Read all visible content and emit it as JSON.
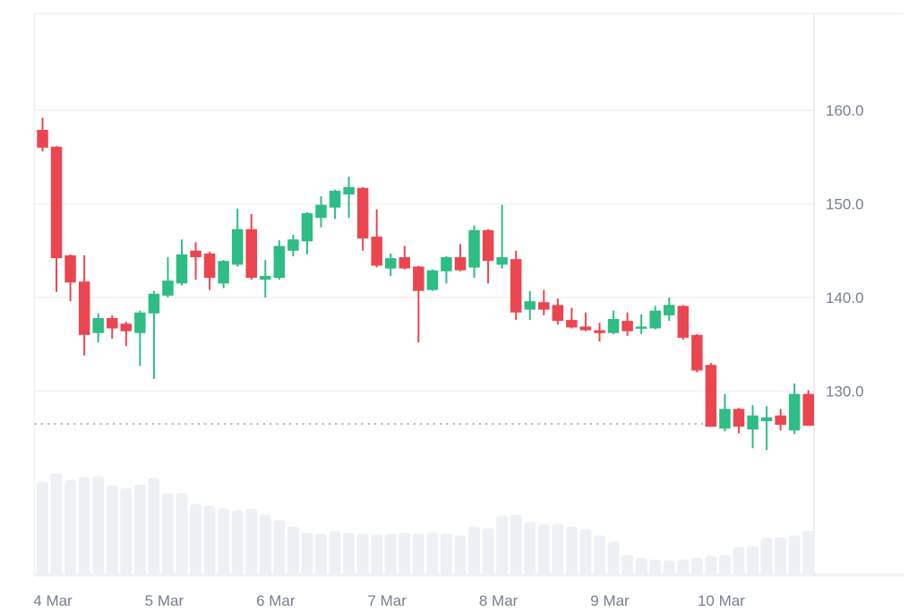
{
  "chart_data": {
    "type": "candlestick",
    "description": "Price candlestick chart with volume bars, 3-hour candles, 4 Mar to 10 Mar",
    "x_tick_labels": [
      "4 Mar",
      "5 Mar",
      "6 Mar",
      "7 Mar",
      "8 Mar",
      "9 Mar",
      "10 Mar"
    ],
    "candles_per_day": 8,
    "y_tick_labels": [
      "160.0",
      "150.0",
      "140.0",
      "130.0"
    ],
    "y_tick_values": [
      160.0,
      150.0,
      140.0,
      130.0
    ],
    "visible_price_range": [
      110.5,
      170.3
    ],
    "current_price_dotted_line": 126.5,
    "legend_position": "none",
    "grid": "horizontal-only",
    "ohlc": [
      [
        157.9,
        159.2,
        155.6,
        156.0
      ],
      [
        156.1,
        156.2,
        140.6,
        144.2
      ],
      [
        144.5,
        144.6,
        139.6,
        141.6
      ],
      [
        141.7,
        144.5,
        133.8,
        136.0
      ],
      [
        136.2,
        138.3,
        135.2,
        137.8
      ],
      [
        137.8,
        138.1,
        135.6,
        136.7
      ],
      [
        137.2,
        137.4,
        134.8,
        136.4
      ],
      [
        136.2,
        138.6,
        132.7,
        138.4
      ],
      [
        138.3,
        140.7,
        131.3,
        140.4
      ],
      [
        140.2,
        144.3,
        140.0,
        141.8
      ],
      [
        141.5,
        146.2,
        141.3,
        144.6
      ],
      [
        145.0,
        145.9,
        141.9,
        144.3
      ],
      [
        144.7,
        144.9,
        140.8,
        142.1
      ],
      [
        141.5,
        144.0,
        141.0,
        143.9
      ],
      [
        143.5,
        149.5,
        143.3,
        147.3
      ],
      [
        147.3,
        148.9,
        141.9,
        142.1
      ],
      [
        141.9,
        144.0,
        140.0,
        142.3
      ],
      [
        142.1,
        146.1,
        141.9,
        145.5
      ],
      [
        145.0,
        146.7,
        144.4,
        146.2
      ],
      [
        146.0,
        149.1,
        144.6,
        149.0
      ],
      [
        148.5,
        150.8,
        147.5,
        149.9
      ],
      [
        149.6,
        151.5,
        148.4,
        151.4
      ],
      [
        151.0,
        152.9,
        148.5,
        151.8
      ],
      [
        151.7,
        151.8,
        145.0,
        146.3
      ],
      [
        146.5,
        149.4,
        143.2,
        143.4
      ],
      [
        143.1,
        144.7,
        142.3,
        144.2
      ],
      [
        144.3,
        145.5,
        143.0,
        143.1
      ],
      [
        143.3,
        143.4,
        135.2,
        140.7
      ],
      [
        140.8,
        143.0,
        140.7,
        142.9
      ],
      [
        142.8,
        144.4,
        141.5,
        144.3
      ],
      [
        144.3,
        145.7,
        142.8,
        142.9
      ],
      [
        143.2,
        147.7,
        142.1,
        147.2
      ],
      [
        147.2,
        147.3,
        141.5,
        143.9
      ],
      [
        143.5,
        149.9,
        143.1,
        144.3
      ],
      [
        144.1,
        145.0,
        137.6,
        138.4
      ],
      [
        138.7,
        140.7,
        137.6,
        139.6
      ],
      [
        139.5,
        140.8,
        138.1,
        138.7
      ],
      [
        139.2,
        139.9,
        137.1,
        137.5
      ],
      [
        137.6,
        138.9,
        136.7,
        136.8
      ],
      [
        136.9,
        138.4,
        136.4,
        136.5
      ],
      [
        136.5,
        137.3,
        135.3,
        136.2
      ],
      [
        136.2,
        138.6,
        136.1,
        137.7
      ],
      [
        137.5,
        138.4,
        135.9,
        136.4
      ],
      [
        136.7,
        138.2,
        136.1,
        136.9
      ],
      [
        136.7,
        139.1,
        136.6,
        138.6
      ],
      [
        138.1,
        140.0,
        137.5,
        139.2
      ],
      [
        139.1,
        139.2,
        135.5,
        135.7
      ],
      [
        136.0,
        136.1,
        132.0,
        132.2
      ],
      [
        132.8,
        133.0,
        126.2,
        126.2
      ],
      [
        126.0,
        129.7,
        125.7,
        128.1
      ],
      [
        128.1,
        128.2,
        125.5,
        126.2
      ],
      [
        125.9,
        128.5,
        123.9,
        127.4
      ],
      [
        126.8,
        128.4,
        123.7,
        127.2
      ],
      [
        127.4,
        128.1,
        125.8,
        126.4
      ],
      [
        125.8,
        130.8,
        125.4,
        129.7
      ],
      [
        129.7,
        130.1,
        126.3,
        126.3
      ]
    ],
    "volume_relative": [
      103,
      112,
      105,
      108,
      109,
      99,
      96,
      100,
      107,
      90,
      90,
      78,
      76,
      73,
      71,
      73,
      66,
      60,
      53,
      46,
      45,
      48,
      46,
      45,
      44,
      45,
      46,
      45,
      46,
      45,
      43,
      53,
      51,
      65,
      66,
      58,
      55,
      56,
      53,
      50,
      43,
      36,
      21,
      18,
      16,
      15,
      16,
      18,
      20,
      21,
      30,
      31,
      40,
      41,
      43,
      48
    ],
    "colors": {
      "bullish": "#2DBD85",
      "bearish": "#EB4650",
      "volume_bar": "#EDF0F4",
      "grid": "#F0F1F4",
      "axis_line": "#E7E9EE",
      "tick_label": "#76808F",
      "dotted_price_line": "#9BA0AA",
      "background": "#FFFFFF"
    }
  }
}
